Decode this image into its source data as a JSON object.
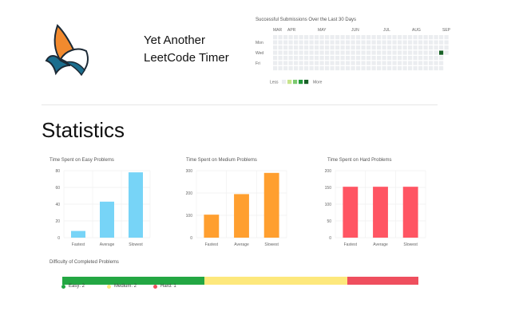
{
  "app": {
    "title_line1": "Yet Another",
    "title_line2": "LeetCode Timer"
  },
  "heatmap": {
    "title": "Successful Submissions Over the Last 30 Days",
    "months": [
      "MAR",
      "APR",
      "MAY",
      "JUN",
      "JUL",
      "AUG",
      "SEP"
    ],
    "days": [
      "Mon",
      "Wed",
      "Fri"
    ],
    "legend_less": "Less",
    "legend_more": "More",
    "colors": [
      "#ebedf0",
      "#c6e48b",
      "#7bc96f",
      "#239a3b",
      "#196127"
    ]
  },
  "statistics": {
    "heading": "Statistics"
  },
  "chart_data": [
    {
      "type": "bar",
      "title": "Time Spent on Easy Problems",
      "categories": [
        "Fastest",
        "Average",
        "Slowest"
      ],
      "values": [
        8,
        43,
        78
      ],
      "ylim": [
        0,
        80
      ],
      "yticks": [
        0,
        20,
        40,
        60,
        80
      ],
      "color": "#77d4f7",
      "grid": true
    },
    {
      "type": "bar",
      "title": "Time Spent on Medium Problems",
      "categories": [
        "Fastest",
        "Average",
        "Slowest"
      ],
      "values": [
        103,
        195,
        290
      ],
      "ylim": [
        0,
        300
      ],
      "yticks": [
        0,
        100,
        200,
        300
      ],
      "color": "#ff9f2f",
      "grid": true
    },
    {
      "type": "bar",
      "title": "Time Spent on Hard Problems",
      "categories": [
        "Fastest",
        "Average",
        "Slowest"
      ],
      "values": [
        152,
        152,
        152
      ],
      "ylim": [
        0,
        200
      ],
      "yticks": [
        0,
        50,
        100,
        150,
        200
      ],
      "color": "#ff5563",
      "grid": true
    }
  ],
  "distribution": {
    "title": "Difficulty of Completed Problems",
    "items": [
      {
        "label": "Easy: 2",
        "count": 2,
        "color": "#23a743"
      },
      {
        "label": "Medium: 2",
        "count": 2,
        "color": "#fde87c"
      },
      {
        "label": "Hard: 1",
        "count": 1,
        "color": "#ef4f5e"
      }
    ]
  }
}
